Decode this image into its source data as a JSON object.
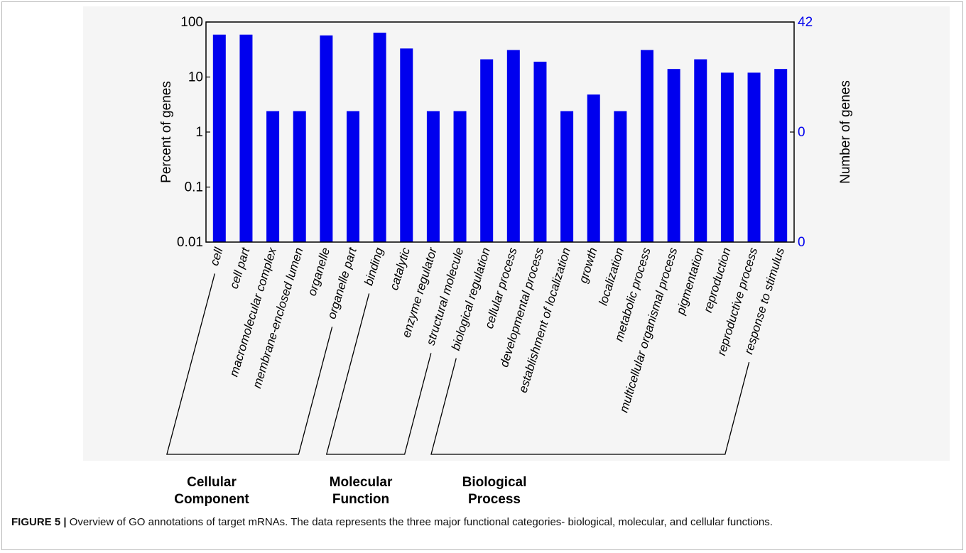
{
  "chart_data": {
    "type": "bar",
    "ylabel": "Percent of genes",
    "ylabel_right": "Number of genes",
    "yscale": "log",
    "ylim": [
      0.01,
      100
    ],
    "y_ticks": [
      "100",
      "10",
      "1",
      "0.1",
      "0.01"
    ],
    "y_right_ticks": [
      "42",
      "0",
      "0"
    ],
    "bar_color": "#0000ee",
    "right_axis_color": "#0000ee",
    "categories": [
      "cell",
      "cell part",
      "macromolecular complex",
      "membrane-enclosed lumen",
      "organelle",
      "organelle part",
      "binding",
      "catalytic",
      "enzyme regulator",
      "structural molecule",
      "biological regulation",
      "cellular process",
      "developmental process",
      "establishment of localization",
      "growth",
      "localization",
      "metabolic process",
      "multicellular organismal process",
      "pigmentation",
      "reproduction",
      "reproductive process",
      "response to stimulus"
    ],
    "values": [
      59,
      59,
      2.4,
      2.4,
      57,
      2.4,
      64,
      33,
      2.4,
      2.4,
      21,
      31,
      19,
      2.4,
      4.8,
      2.4,
      31,
      14,
      21,
      12,
      12,
      14
    ],
    "groups": [
      {
        "name": "Cellular Component",
        "line1": "Cellular",
        "line2": "Component",
        "start": 0,
        "end": 5
      },
      {
        "name": "Molecular Function",
        "line1": "Molecular",
        "line2": "Function",
        "start": 6,
        "end": 9
      },
      {
        "name": "Biological Process",
        "line1": "Biological",
        "line2": "Process",
        "start": 10,
        "end": 21
      }
    ]
  },
  "caption": {
    "label": "FIGURE 5 |",
    "text": " Overview of GO annotations of target mRNAs. The data represents the three major functional categories- biological, molecular, and cellular functions."
  }
}
